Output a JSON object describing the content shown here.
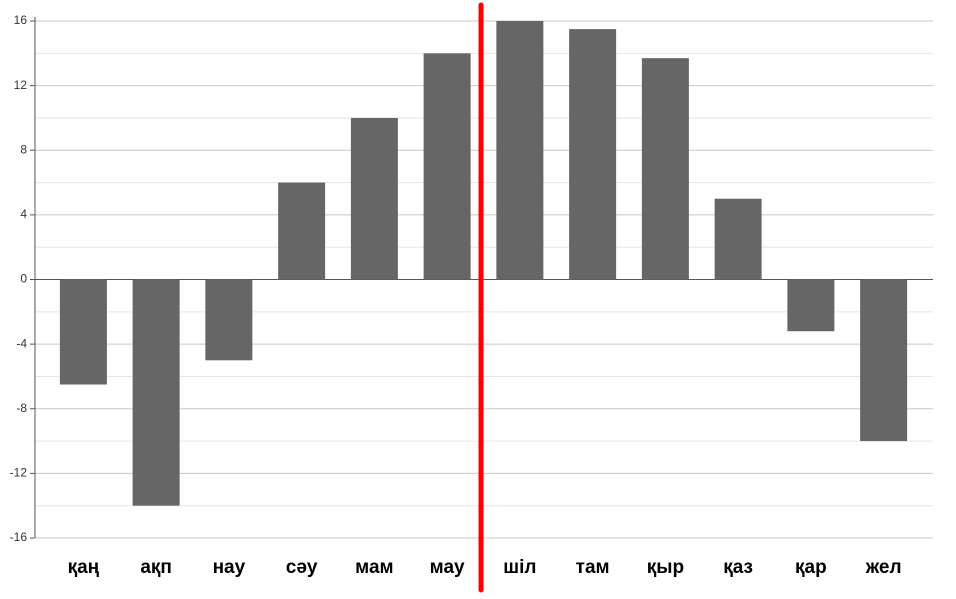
{
  "chart_data": {
    "type": "bar",
    "categories": [
      "қаң",
      "ақп",
      "нау",
      "сәу",
      "мам",
      "мау",
      "шіл",
      "там",
      "қыр",
      "қаз",
      "қар",
      "жел"
    ],
    "values": [
      -6.5,
      -14,
      -5,
      6,
      10,
      14,
      16,
      15.5,
      13.7,
      5,
      -3.2,
      -10
    ],
    "color": "#666666",
    "ylim": [
      -16,
      16
    ],
    "yticks": [
      -16,
      -12,
      -8,
      -4,
      0,
      4,
      8,
      12,
      16
    ],
    "minor_yticks": [
      -14,
      -10,
      -6,
      -2,
      2,
      6,
      10,
      14
    ],
    "grid": true
  }
}
